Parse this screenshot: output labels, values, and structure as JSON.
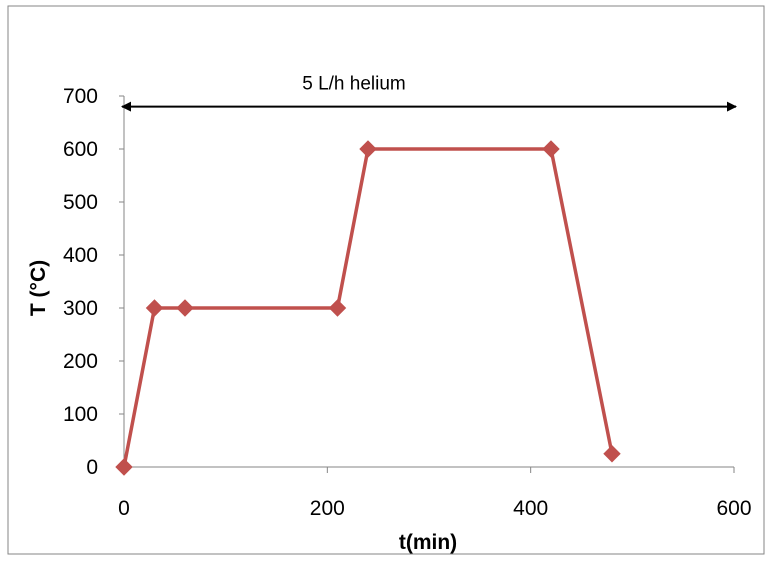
{
  "chart_data": {
    "type": "line",
    "title": "",
    "xlabel": "t(min)",
    "ylabel": "T (°C)",
    "xlim": [
      0,
      600
    ],
    "ylim": [
      0,
      700
    ],
    "xticks": [
      0,
      200,
      400,
      600
    ],
    "yticks": [
      0,
      100,
      200,
      300,
      400,
      500,
      600,
      700
    ],
    "grid": false,
    "legend": "none",
    "series": [
      {
        "x": [
          0,
          30,
          60,
          210,
          240,
          420,
          480
        ],
        "y": [
          0,
          300,
          300,
          300,
          600,
          600,
          25
        ],
        "color": "#c0504d",
        "marker": "diamond"
      }
    ],
    "annotations": [
      {
        "text": "5 L/h helium",
        "arrow": "double-headed",
        "y": 680,
        "x_range": [
          0,
          600
        ]
      }
    ],
    "colors": {
      "series": "#c0504d",
      "axis": "#868686",
      "frame": "#868686"
    }
  }
}
